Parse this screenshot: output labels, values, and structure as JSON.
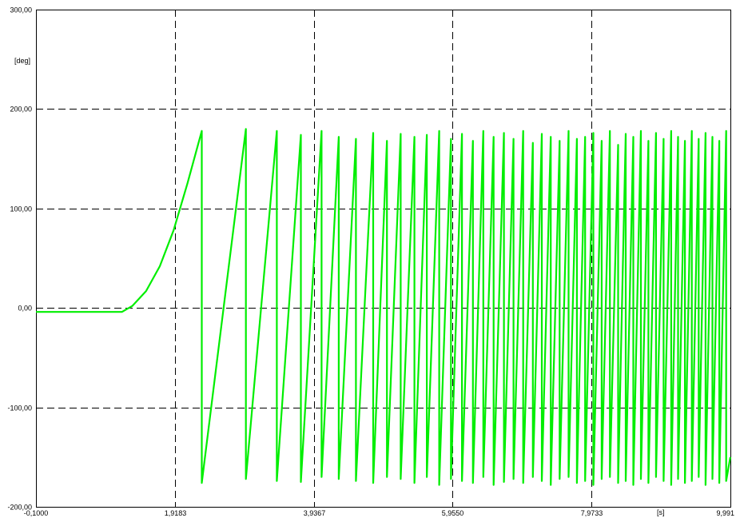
{
  "chart_data": {
    "type": "line",
    "title": "",
    "ylabel": "[deg]",
    "xlabel": "[s]",
    "xlim": [
      -0.1,
      9.991
    ],
    "ylim": [
      -200,
      300
    ],
    "x_ticks": [
      "-0,1000",
      "1,9183",
      "3,9367",
      "5,9550",
      "7,9733",
      "9,991"
    ],
    "x_tick_values": [
      -0.1,
      1.9183,
      3.9367,
      5.955,
      7.9733,
      9.991
    ],
    "y_ticks": [
      "300,00",
      "200,00",
      "100,00",
      "0,00",
      "-100,00",
      "-200,00"
    ],
    "y_tick_values": [
      300,
      200,
      100,
      0,
      -100,
      -200
    ],
    "grid": true,
    "line_color": "#00ee00",
    "series": [
      {
        "description": "angle starts flat near -4, rises quadratically from about t=1.15 until it wraps at about t=2.31, then repeated sawtooth wraps between about -175 and 178 with increasing frequency",
        "x": [
          -0.1,
          1.15,
          1.3,
          1.5,
          1.7,
          1.9,
          2.1,
          2.31,
          2.31,
          2.95,
          2.95,
          3.4,
          3.4,
          3.75,
          3.75,
          4.05,
          4.05,
          4.3,
          4.3,
          4.55,
          4.55,
          4.8,
          4.8,
          5.0,
          5.0,
          5.2,
          5.2,
          5.4,
          5.4,
          5.58,
          5.58,
          5.76,
          5.76,
          5.93,
          5.93,
          6.09,
          6.09,
          6.25,
          6.25,
          6.4,
          6.4,
          6.55,
          6.55,
          6.7,
          6.7,
          6.84,
          6.84,
          6.98,
          6.98,
          7.12,
          7.12,
          7.25,
          7.25,
          7.38,
          7.38,
          7.51,
          7.51,
          7.64,
          7.64,
          7.76,
          7.76,
          7.88,
          7.88,
          8.0,
          8.0,
          8.12,
          8.12,
          8.24,
          8.24,
          8.36,
          8.36,
          8.47,
          8.47,
          8.58,
          8.58,
          8.69,
          8.69,
          8.8,
          8.8,
          8.91,
          8.91,
          9.02,
          9.02,
          9.13,
          9.13,
          9.23,
          9.23,
          9.33,
          9.33,
          9.43,
          9.43,
          9.53,
          9.53,
          9.63,
          9.63,
          9.73,
          9.73,
          9.83,
          9.83,
          9.93,
          9.93,
          9.99
        ],
        "y": [
          -4,
          -4,
          2,
          17,
          42,
          78,
          125,
          178,
          -176,
          180,
          -172,
          178,
          -174,
          174,
          -175,
          178,
          -170,
          172,
          -172,
          170,
          -174,
          176,
          -176,
          168,
          -170,
          175,
          -172,
          172,
          -176,
          174,
          -170,
          178,
          -178,
          170,
          -172,
          175,
          -174,
          168,
          -176,
          178,
          -170,
          172,
          -178,
          176,
          -175,
          170,
          -172,
          178,
          -176,
          166,
          -170,
          175,
          -174,
          172,
          -178,
          168,
          -172,
          178,
          -170,
          170,
          -176,
          172,
          -174,
          176,
          -178,
          168,
          -172,
          178,
          -170,
          164,
          -176,
          175,
          -174,
          172,
          -178,
          178,
          -172,
          168,
          -176,
          176,
          -170,
          170,
          -174,
          178,
          -178,
          172,
          -172,
          168,
          -176,
          178,
          -174,
          170,
          -170,
          176,
          -178,
          172,
          -172,
          168,
          -176,
          178,
          -174,
          -150
        ]
      }
    ]
  }
}
